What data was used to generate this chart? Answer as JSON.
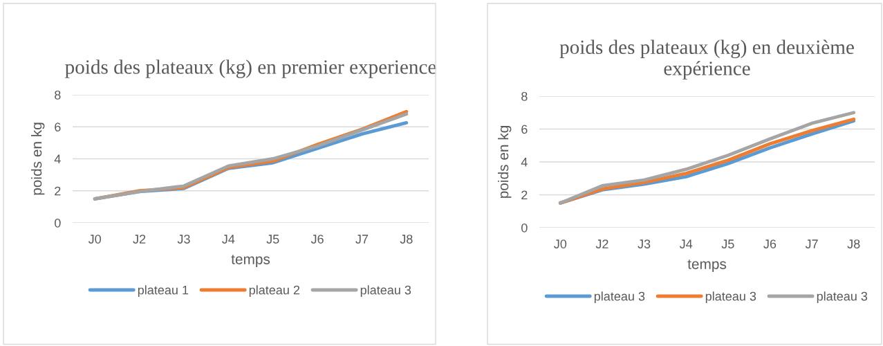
{
  "chart_data": [
    {
      "type": "line",
      "title": "poids des plateaux (kg) en premier experience",
      "xlabel": "temps",
      "ylabel": "poids en kg",
      "categories": [
        "J0",
        "J2",
        "J3",
        "J4",
        "J5",
        "J6",
        "J7",
        "J8"
      ],
      "ylim": [
        0,
        8
      ],
      "yticks": [
        0,
        2,
        4,
        6,
        8
      ],
      "grid": "y",
      "legend": "bottom",
      "marker": "none",
      "series": [
        {
          "name": "plateau 1",
          "color": "#5b9bd5",
          "values": [
            1.5,
            1.95,
            2.15,
            3.4,
            3.75,
            4.65,
            5.55,
            6.25
          ]
        },
        {
          "name": "plateau 2",
          "color": "#ed7d31",
          "values": [
            1.5,
            2.0,
            2.2,
            3.45,
            3.85,
            4.9,
            5.85,
            6.95
          ]
        },
        {
          "name": "plateau 3",
          "color": "#a5a5a5",
          "values": [
            1.5,
            1.95,
            2.3,
            3.55,
            4.0,
            4.8,
            5.8,
            6.8
          ]
        }
      ]
    },
    {
      "type": "line",
      "title": "poids des plateaux (kg) en deuxième expérience",
      "xlabel": "temps",
      "ylabel": "poids en kg",
      "categories": [
        "J0",
        "J2",
        "J3",
        "J4",
        "J5",
        "J6",
        "J7",
        "J8"
      ],
      "ylim": [
        0,
        8
      ],
      "yticks": [
        0,
        2,
        4,
        6,
        8
      ],
      "grid": "y",
      "legend": "bottom",
      "marker": "none",
      "series": [
        {
          "name": "plateau 3",
          "color": "#5b9bd5",
          "values": [
            1.5,
            2.3,
            2.65,
            3.1,
            3.9,
            4.85,
            5.7,
            6.5
          ]
        },
        {
          "name": "plateau 3",
          "color": "#ed7d31",
          "values": [
            1.5,
            2.35,
            2.75,
            3.3,
            4.1,
            5.1,
            5.9,
            6.6
          ]
        },
        {
          "name": "plateau 3",
          "color": "#a5a5a5",
          "values": [
            1.5,
            2.55,
            2.9,
            3.55,
            4.4,
            5.4,
            6.35,
            7.0
          ]
        }
      ]
    }
  ]
}
